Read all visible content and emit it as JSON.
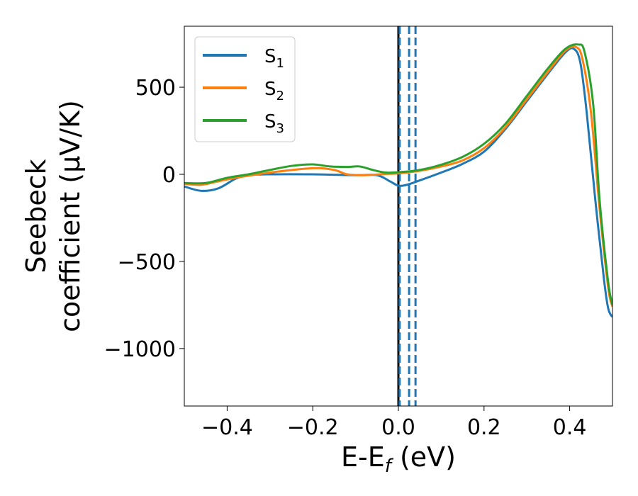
{
  "chart_data": {
    "type": "line",
    "xlabel": "E-E",
    "xlabel_sub": "f",
    "xlabel_unit": " (eV)",
    "ylabel_line1": "Seebeck",
    "ylabel_line2": "coefficient  (μV/K)",
    "xlim": [
      -0.5,
      0.5
    ],
    "ylim": [
      -1330,
      850
    ],
    "xticks": [
      -0.4,
      -0.2,
      0.0,
      0.2,
      0.4
    ],
    "xtick_labels": [
      "−0.4",
      "−0.2",
      "0.0",
      "0.2",
      "0.4"
    ],
    "yticks": [
      500,
      0,
      -500,
      -1000
    ],
    "ytick_labels": [
      "500",
      "0",
      "−500",
      "−1000"
    ],
    "grid": false,
    "legend_position": "top-left",
    "vertical_lines": [
      {
        "x": 0.0,
        "style": "solid",
        "color": "#000000"
      },
      {
        "x": 0.003,
        "style": "dashed",
        "color": "#1f77b4"
      },
      {
        "x": 0.025,
        "style": "dashed",
        "color": "#1f77b4"
      },
      {
        "x": 0.04,
        "style": "dashed",
        "color": "#1f77b4"
      }
    ],
    "series": [
      {
        "name": "S",
        "name_sub": "1",
        "color": "#1f77b4",
        "points": [
          [
            -0.5,
            -70
          ],
          [
            -0.46,
            -95
          ],
          [
            -0.42,
            -80
          ],
          [
            -0.38,
            -25
          ],
          [
            -0.35,
            -5
          ],
          [
            -0.3,
            0
          ],
          [
            -0.2,
            0
          ],
          [
            -0.1,
            -5
          ],
          [
            -0.05,
            -5
          ],
          [
            -0.02,
            -40
          ],
          [
            0.0,
            -65
          ],
          [
            0.02,
            -60
          ],
          [
            0.05,
            -35
          ],
          [
            0.1,
            10
          ],
          [
            0.15,
            60
          ],
          [
            0.2,
            130
          ],
          [
            0.25,
            260
          ],
          [
            0.3,
            420
          ],
          [
            0.35,
            580
          ],
          [
            0.39,
            700
          ],
          [
            0.41,
            720
          ],
          [
            0.425,
            640
          ],
          [
            0.44,
            350
          ],
          [
            0.46,
            -150
          ],
          [
            0.48,
            -600
          ],
          [
            0.49,
            -770
          ],
          [
            0.5,
            -820
          ]
        ]
      },
      {
        "name": "S",
        "name_sub": "2",
        "color": "#ff7f0e",
        "points": [
          [
            -0.5,
            -55
          ],
          [
            -0.46,
            -60
          ],
          [
            -0.42,
            -40
          ],
          [
            -0.38,
            -20
          ],
          [
            -0.3,
            10
          ],
          [
            -0.2,
            35
          ],
          [
            -0.15,
            25
          ],
          [
            -0.12,
            0
          ],
          [
            -0.08,
            -5
          ],
          [
            -0.03,
            2
          ],
          [
            0.0,
            5
          ],
          [
            0.05,
            20
          ],
          [
            0.1,
            45
          ],
          [
            0.15,
            80
          ],
          [
            0.2,
            150
          ],
          [
            0.25,
            270
          ],
          [
            0.3,
            430
          ],
          [
            0.35,
            590
          ],
          [
            0.39,
            710
          ],
          [
            0.415,
            730
          ],
          [
            0.43,
            660
          ],
          [
            0.45,
            350
          ],
          [
            0.47,
            -200
          ],
          [
            0.49,
            -650
          ],
          [
            0.5,
            -760
          ]
        ]
      },
      {
        "name": "S",
        "name_sub": "3",
        "color": "#2ca02c",
        "points": [
          [
            -0.5,
            -50
          ],
          [
            -0.45,
            -50
          ],
          [
            -0.4,
            -20
          ],
          [
            -0.35,
            0
          ],
          [
            -0.3,
            25
          ],
          [
            -0.25,
            48
          ],
          [
            -0.2,
            57
          ],
          [
            -0.16,
            45
          ],
          [
            -0.12,
            42
          ],
          [
            -0.09,
            45
          ],
          [
            -0.06,
            25
          ],
          [
            -0.03,
            10
          ],
          [
            0.0,
            12
          ],
          [
            0.05,
            25
          ],
          [
            0.1,
            55
          ],
          [
            0.15,
            100
          ],
          [
            0.2,
            175
          ],
          [
            0.25,
            290
          ],
          [
            0.3,
            450
          ],
          [
            0.35,
            610
          ],
          [
            0.39,
            720
          ],
          [
            0.42,
            745
          ],
          [
            0.435,
            700
          ],
          [
            0.455,
            400
          ],
          [
            0.47,
            -150
          ],
          [
            0.49,
            -620
          ],
          [
            0.5,
            -750
          ]
        ]
      }
    ]
  }
}
